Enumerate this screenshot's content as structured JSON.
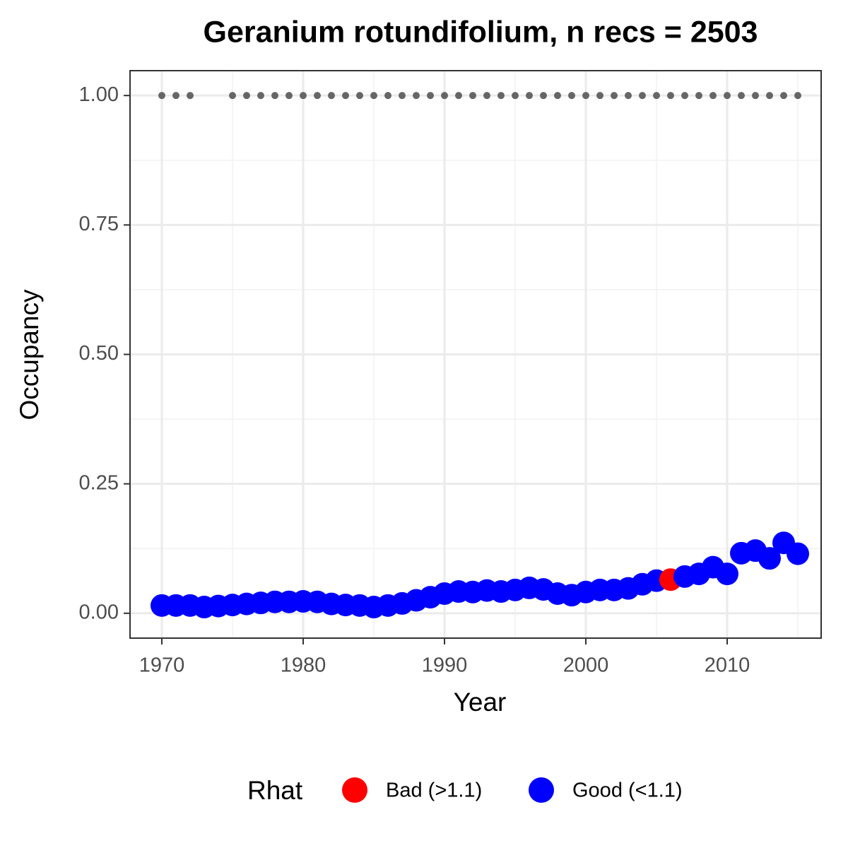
{
  "chart_data": {
    "type": "scatter",
    "title": "Geranium rotundifolium, n recs = 2503",
    "x_label": "Year",
    "y_label": "Occupancy",
    "x": [
      1970,
      1971,
      1972,
      1973,
      1974,
      1975,
      1976,
      1977,
      1978,
      1979,
      1980,
      1981,
      1982,
      1983,
      1984,
      1985,
      1986,
      1987,
      1988,
      1989,
      1990,
      1991,
      1992,
      1993,
      1994,
      1995,
      1996,
      1997,
      1998,
      1999,
      2000,
      2001,
      2002,
      2003,
      2004,
      2005,
      2006,
      2007,
      2008,
      2009,
      2010,
      2011,
      2012,
      2013,
      2014,
      2015
    ],
    "series": [
      {
        "name": "Bad (>1.1)",
        "color": "#ff0000",
        "values": [
          null,
          null,
          null,
          null,
          null,
          null,
          null,
          null,
          null,
          null,
          null,
          null,
          null,
          null,
          null,
          null,
          null,
          null,
          null,
          null,
          null,
          null,
          null,
          null,
          null,
          null,
          null,
          null,
          null,
          null,
          null,
          null,
          null,
          null,
          null,
          null,
          0.065,
          null,
          null,
          null,
          null,
          null,
          null,
          null,
          null,
          null
        ]
      },
      {
        "name": "Good (<1.1)",
        "color": "#0000ff",
        "values": [
          0.015,
          0.015,
          0.015,
          0.012,
          0.014,
          0.016,
          0.018,
          0.02,
          0.022,
          0.022,
          0.023,
          0.022,
          0.018,
          0.016,
          0.015,
          0.012,
          0.015,
          0.019,
          0.025,
          0.031,
          0.038,
          0.042,
          0.041,
          0.044,
          0.042,
          0.045,
          0.049,
          0.046,
          0.038,
          0.035,
          0.041,
          0.045,
          0.045,
          0.048,
          0.056,
          0.063,
          null,
          0.071,
          0.076,
          0.089,
          0.076,
          0.116,
          0.121,
          0.106,
          0.136,
          0.115
        ]
      }
    ],
    "upper_points": {
      "color": "#666666",
      "values": [
        1,
        1,
        1,
        null,
        null,
        1,
        1,
        1,
        1,
        1,
        1,
        1,
        1,
        1,
        1,
        1,
        1,
        1,
        1,
        1,
        1,
        1,
        1,
        1,
        1,
        1,
        1,
        1,
        1,
        1,
        1,
        1,
        1,
        1,
        1,
        1,
        1,
        1,
        1,
        1,
        1,
        1,
        1,
        1,
        1,
        1
      ]
    },
    "legend_title": "Rhat",
    "legend_position": "bottom",
    "xlim": [
      1967.75,
      2016.65
    ],
    "ylim": [
      -0.048,
      1.048
    ],
    "xticks": [
      1970,
      1980,
      1990,
      2000,
      2010
    ],
    "yticks": [
      {
        "value": 0,
        "label": "0.00"
      },
      {
        "value": 0.25,
        "label": "0.25"
      },
      {
        "value": 0.5,
        "label": "0.50"
      },
      {
        "value": 0.75,
        "label": "0.75"
      },
      {
        "value": 1,
        "label": "1.00"
      }
    ],
    "xminor": [
      1975,
      1985,
      1995,
      2005,
      2015
    ],
    "yminor": [
      0.125,
      0.375,
      0.625,
      0.875
    ],
    "grid": true
  }
}
